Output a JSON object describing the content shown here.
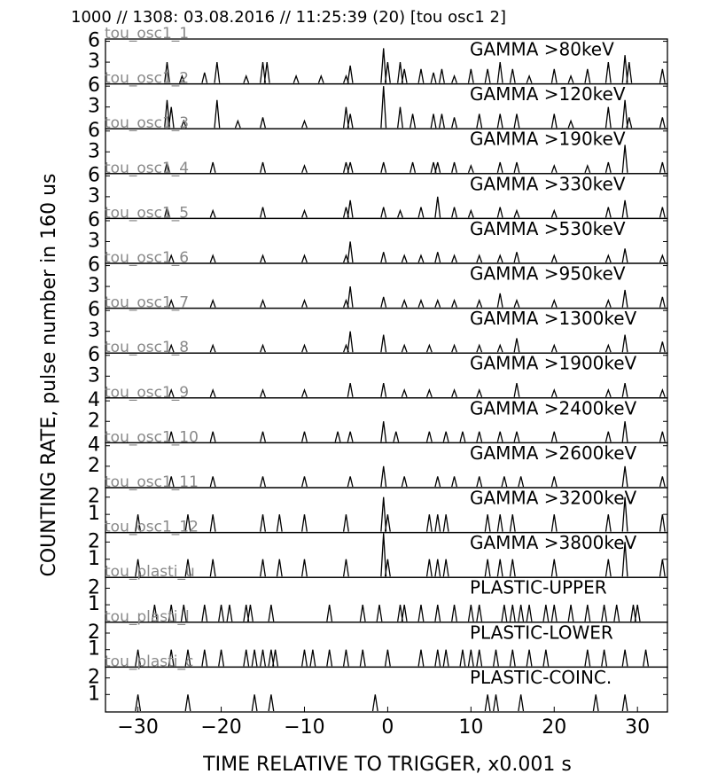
{
  "chart_data": [
    {
      "type": "spike",
      "title": "1000 // 1308:   03.08.2016 // 11:25:39 (20)  [tou osc1 2]",
      "ylabel": "COUNTING RATE,    pulse number in 160 us",
      "label": "tou_osc1_1",
      "annotation": "GAMMA >80keV",
      "color": "#000000",
      "xlim": [
        -33.9,
        33.6
      ],
      "ylim": [
        0,
        6.2
      ],
      "yticks": [
        3,
        6
      ],
      "x": [
        -26.5,
        -24.7,
        -22,
        -20.5,
        -17,
        -15,
        -14.5,
        -11,
        -8,
        -5,
        -4.5,
        -0.5,
        0,
        1.5,
        2,
        4,
        5.5,
        6.5,
        8,
        10,
        12,
        13.5,
        15,
        17,
        20,
        22,
        24,
        26.5,
        28.5,
        29,
        33
      ],
      "values": [
        3,
        1,
        1.5,
        3,
        1,
        3,
        3,
        1,
        1,
        1,
        2.5,
        5,
        3,
        3,
        2,
        2,
        1.5,
        2,
        1,
        2,
        2,
        3,
        2,
        1,
        2,
        1,
        2,
        3,
        4,
        3,
        2
      ]
    },
    {
      "type": "spike",
      "label": "tou_osc1_2",
      "annotation": "GAMMA >120keV",
      "color": "#000000",
      "xlim": [
        -33.9,
        33.6
      ],
      "ylim": [
        0,
        6.2
      ],
      "yticks": [
        3,
        6
      ],
      "x": [
        -26.5,
        -26,
        -24.5,
        -20.5,
        -18,
        -15,
        -10,
        -5,
        -4.5,
        -0.5,
        1.5,
        3,
        5.5,
        6.5,
        8,
        11,
        13.5,
        15.5,
        20,
        22,
        26.5,
        28.5,
        29,
        33
      ],
      "values": [
        4,
        3,
        1,
        4,
        1,
        1.5,
        1,
        3,
        2,
        6,
        3,
        2,
        2,
        2,
        1.5,
        2,
        2,
        2,
        2,
        1,
        3,
        4,
        1.5,
        1.5
      ]
    },
    {
      "type": "spike",
      "label": "tou_osc1_3",
      "annotation": "GAMMA >190keV",
      "color": "#000000",
      "xlim": [
        -33.9,
        33.6
      ],
      "ylim": [
        0,
        6.2
      ],
      "yticks": [
        3,
        6
      ],
      "x": [
        -26.5,
        -21,
        -15,
        -10,
        -5,
        -4.5,
        -0.5,
        3,
        5.5,
        6,
        8,
        10,
        13.5,
        15.5,
        20,
        24,
        26.5,
        28.5,
        33
      ],
      "values": [
        1.5,
        1.5,
        1.5,
        1,
        1.5,
        1.5,
        1.5,
        1.5,
        1.5,
        1.5,
        1.5,
        1,
        1.5,
        1.5,
        1,
        1,
        1.5,
        4,
        1.5
      ]
    },
    {
      "type": "spike",
      "label": "tou_osc1_4",
      "annotation": "GAMMA >330keV",
      "color": "#000000",
      "xlim": [
        -33.9,
        33.6
      ],
      "ylim": [
        0,
        6.2
      ],
      "yticks": [
        3,
        6
      ],
      "x": [
        -26.5,
        -21,
        -15,
        -10,
        -5,
        -4.5,
        -0.5,
        1.5,
        4,
        6,
        8,
        10,
        13.5,
        15.5,
        20,
        26.5,
        28.5,
        33
      ],
      "values": [
        1.5,
        1,
        1.5,
        1,
        1.5,
        2.5,
        1.5,
        1,
        1.5,
        3,
        1.5,
        1,
        1.5,
        1,
        1,
        1.5,
        2.5,
        1.5
      ]
    },
    {
      "type": "spike",
      "label": "tou_osc1_5",
      "annotation": "GAMMA >530keV",
      "color": "#000000",
      "xlim": [
        -33.9,
        33.6
      ],
      "ylim": [
        0,
        6.2
      ],
      "yticks": [
        3,
        6
      ],
      "x": [
        -26,
        -21,
        -15,
        -10,
        -5,
        -4.5,
        -0.5,
        2,
        4,
        6,
        8,
        11,
        13.5,
        15.5,
        20,
        26.5,
        28.5,
        33
      ],
      "values": [
        1,
        1,
        1,
        1,
        1,
        3,
        1.5,
        1,
        1,
        1.5,
        1,
        1,
        1,
        1.5,
        1,
        1,
        2,
        1
      ]
    },
    {
      "type": "spike",
      "label": "tou_osc1_6",
      "annotation": "GAMMA >950keV",
      "color": "#000000",
      "xlim": [
        -33.9,
        33.6
      ],
      "ylim": [
        0,
        6.2
      ],
      "yticks": [
        3,
        6
      ],
      "x": [
        -26,
        -21,
        -15,
        -10,
        -5,
        -4.5,
        -0.5,
        2,
        4,
        6,
        8,
        11,
        13.5,
        15.5,
        20,
        26.5,
        28.5,
        33
      ],
      "values": [
        1,
        1,
        1,
        1,
        1,
        3,
        1.5,
        1,
        1,
        1,
        1,
        1,
        2,
        1,
        1,
        1,
        2.5,
        1.5
      ]
    },
    {
      "type": "spike",
      "label": "tou_osc1_7",
      "annotation": "GAMMA >1300keV",
      "color": "#000000",
      "xlim": [
        -33.9,
        33.6
      ],
      "ylim": [
        0,
        6.2
      ],
      "yticks": [
        3,
        6
      ],
      "x": [
        -26,
        -21,
        -15,
        -10,
        -5,
        -4.5,
        -0.5,
        2,
        5,
        8,
        11,
        13.5,
        15.5,
        20,
        26.5,
        28.5,
        33
      ],
      "values": [
        1,
        1,
        1,
        1,
        1,
        3,
        2.5,
        1,
        1,
        1,
        1,
        1,
        2,
        1,
        1,
        2.5,
        1.5
      ]
    },
    {
      "type": "spike",
      "label": "tou_osc1_8",
      "annotation": "GAMMA >1900keV",
      "color": "#000000",
      "xlim": [
        -33.9,
        33.6
      ],
      "ylim": [
        0,
        6.2
      ],
      "yticks": [
        3,
        6
      ],
      "x": [
        -26,
        -21,
        -15,
        -10,
        -4.5,
        -0.5,
        2,
        5,
        8,
        11,
        15.5,
        20,
        26.5,
        28.5,
        33
      ],
      "values": [
        1,
        1,
        1,
        1,
        2,
        2,
        1,
        1,
        1,
        1,
        2,
        1,
        1,
        2,
        1
      ]
    },
    {
      "type": "spike",
      "label": "tou_osc1_9",
      "annotation": "GAMMA >2400keV",
      "color": "#000000",
      "xlim": [
        -33.9,
        33.6
      ],
      "ylim": [
        0,
        4.2
      ],
      "yticks": [
        2,
        4
      ],
      "x": [
        -26,
        -21,
        -15,
        -10,
        -6,
        -4.5,
        -0.5,
        1,
        5,
        7,
        9,
        11,
        13.5,
        15.5,
        20,
        26.5,
        28.5,
        33
      ],
      "values": [
        1,
        1,
        1,
        1,
        1,
        1,
        2,
        1,
        1,
        1,
        1,
        1,
        1,
        1,
        1,
        1,
        2,
        1
      ]
    },
    {
      "type": "spike",
      "label": "tou_osc1_10",
      "annotation": "GAMMA >2600keV",
      "color": "#000000",
      "xlim": [
        -33.9,
        33.6
      ],
      "ylim": [
        0,
        4.2
      ],
      "yticks": [
        2,
        4
      ],
      "x": [
        -26,
        -21,
        -15,
        -10,
        -4.5,
        -0.5,
        2,
        6,
        8,
        11,
        14,
        16,
        20,
        28.5,
        33
      ],
      "values": [
        1,
        1,
        1,
        1,
        1,
        2,
        1,
        1,
        1,
        1,
        1,
        1,
        1,
        2,
        1
      ]
    },
    {
      "type": "spike",
      "label": "tou_osc1_11",
      "annotation": "GAMMA >3200keV",
      "color": "#000000",
      "xlim": [
        -33.9,
        33.6
      ],
      "ylim": [
        0,
        2.5
      ],
      "yticks": [
        1,
        2
      ],
      "x": [
        -30,
        -24,
        -21,
        -15,
        -13,
        -10,
        -5,
        -0.5,
        0,
        5,
        6,
        7,
        12,
        13.5,
        15,
        20,
        26.5,
        28.5,
        33
      ],
      "values": [
        1,
        1,
        1,
        1,
        1,
        1,
        1,
        2,
        1,
        1,
        1,
        1,
        1,
        1,
        1,
        1,
        1,
        2,
        1
      ]
    },
    {
      "type": "spike",
      "label": "tou_osc1_12",
      "annotation": "GAMMA >3800keV",
      "color": "#000000",
      "xlim": [
        -33.9,
        33.6
      ],
      "ylim": [
        0,
        2.5
      ],
      "yticks": [
        1,
        2
      ],
      "x": [
        -30,
        -24,
        -21,
        -15,
        -13,
        -10,
        -5,
        -0.5,
        0,
        5,
        6,
        7,
        12,
        13.5,
        15,
        20,
        26.5,
        28.5,
        33
      ],
      "values": [
        1,
        1,
        1,
        1,
        1,
        1,
        1,
        2.5,
        1,
        1,
        1,
        1,
        1,
        1,
        1,
        1,
        1,
        2,
        1
      ]
    },
    {
      "type": "spike",
      "label": "tou_plasti_u",
      "annotation": "PLASTIC-UPPER",
      "color": "#000000",
      "xlim": [
        -33.9,
        33.6
      ],
      "ylim": [
        0,
        2.6
      ],
      "yticks": [
        1,
        2
      ],
      "x": [
        -28,
        -26,
        -24.5,
        -22,
        -20,
        -19,
        -17,
        -16.5,
        -14,
        -7,
        -3,
        -1,
        1.5,
        2,
        4,
        6,
        8,
        10,
        11,
        14,
        15,
        16,
        17,
        19,
        20,
        22,
        24,
        26,
        27.5,
        29.5,
        30
      ],
      "values": [
        1,
        1,
        1,
        1,
        1,
        1,
        1,
        1,
        1,
        1,
        1,
        1,
        1,
        1,
        1,
        1,
        1,
        1,
        1,
        1,
        1,
        1,
        1,
        1,
        1,
        1,
        1,
        1,
        1,
        1,
        1
      ]
    },
    {
      "type": "spike",
      "label": "tou_plasti_l",
      "annotation": "PLASTIC-LOWER",
      "color": "#000000",
      "xlim": [
        -33.9,
        33.6
      ],
      "ylim": [
        0,
        2.6
      ],
      "yticks": [
        1,
        2
      ],
      "x": [
        -30,
        -26,
        -24,
        -22,
        -20,
        -17,
        -16,
        -15,
        -14,
        -13.5,
        -10,
        -9,
        -7,
        -5,
        -3,
        0,
        4,
        6,
        7,
        9,
        10,
        11,
        13,
        15,
        17,
        19,
        24,
        26,
        28.5,
        31
      ],
      "values": [
        1,
        1,
        1,
        1,
        1,
        1,
        1,
        1,
        1,
        1,
        1,
        1,
        1,
        1,
        1,
        1,
        1,
        1,
        1,
        1,
        1,
        1,
        1,
        1,
        1,
        1,
        1,
        1,
        1,
        1
      ]
    },
    {
      "type": "spike",
      "label": "tou_plasti_c",
      "annotation": "PLASTIC-COINC.",
      "xlabel": "TIME RELATIVE TO TRIGGER,   x0.001 s",
      "color": "#000000",
      "xlim": [
        -33.9,
        33.6
      ],
      "ylim": [
        0,
        2.6
      ],
      "yticks": [
        1,
        2
      ],
      "xticks": [
        {
          "value": -30,
          "label": "−30"
        },
        {
          "value": -20,
          "label": "−20"
        },
        {
          "value": -10,
          "label": "−10"
        },
        0,
        10,
        20,
        30
      ],
      "x": [
        -30,
        -24,
        -16,
        -14,
        -1.5,
        12,
        13,
        16,
        25,
        28.5
      ],
      "values": [
        1,
        1,
        1,
        1,
        1,
        1,
        1,
        1,
        1,
        1
      ]
    }
  ]
}
